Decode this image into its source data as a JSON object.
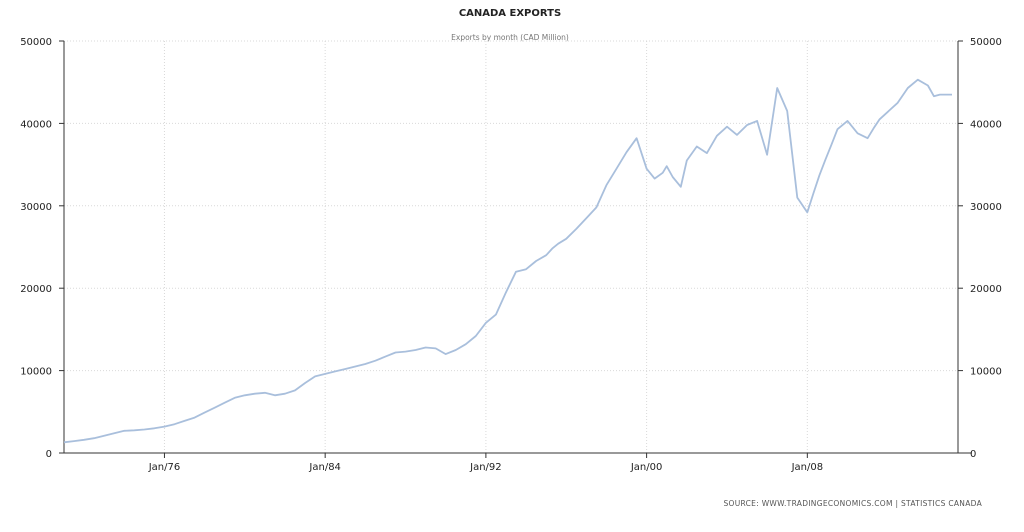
{
  "chart_data": {
    "type": "line",
    "title": "CANADA EXPORTS",
    "subtitle": "Exports by month (CAD Million)",
    "source": "SOURCE:  WWW.TRADINGECONOMICS.COM  |  STATISTICS  CANADA",
    "y_ticks": [
      "0",
      "10000",
      "20000",
      "30000",
      "40000",
      "50000"
    ],
    "x_ticks": [
      {
        "label": "Jan/76",
        "value": 1976
      },
      {
        "label": "Jan/84",
        "value": 1984
      },
      {
        "label": "Jan/92",
        "value": 1992
      },
      {
        "label": "Jan/00",
        "value": 2000
      },
      {
        "label": "Jan/08",
        "value": 2008
      }
    ],
    "xlim": [
      1971,
      2015.5
    ],
    "ylim": [
      0,
      50000
    ],
    "grid": true,
    "colors": {
      "line": "#a9bfdc"
    },
    "series": [
      {
        "x": [
          1971.0,
          1971.5,
          1972.0,
          1972.5,
          1973.0,
          1973.5,
          1974.0,
          1974.5,
          1975.0,
          1975.5,
          1976.0,
          1976.5,
          1977.0,
          1977.5,
          1978.0,
          1978.5,
          1979.0,
          1979.5,
          1980.0,
          1980.5,
          1981.0,
          1981.5,
          1982.0,
          1982.5,
          1983.0,
          1983.5,
          1984.0,
          1984.5,
          1985.0,
          1985.5,
          1986.0,
          1986.5,
          1987.0,
          1987.5,
          1988.0,
          1988.5,
          1989.0,
          1989.5,
          1990.0,
          1990.5,
          1991.0,
          1991.5,
          1992.0,
          1992.5,
          1993.0,
          1993.5,
          1994.0,
          1994.5,
          1995.0,
          1995.3,
          1995.6,
          1996.0,
          1996.5,
          1997.0,
          1997.5,
          1998.0,
          1998.5,
          1999.0,
          1999.5,
          2000.0,
          2000.4,
          2000.8,
          2001.0,
          2001.3,
          2001.7,
          2002.0,
          2002.5,
          2003.0,
          2003.5,
          2004.0,
          2004.5,
          2005.0,
          2005.5,
          2006.0,
          2006.5,
          2007.0,
          2007.5,
          2008.0,
          2008.3,
          2008.6,
          2008.9,
          2009.2,
          2009.5,
          2010.0,
          2010.5,
          2011.0,
          2011.3,
          2011.6,
          2012.0,
          2012.5,
          2013.0,
          2013.5,
          2014.0,
          2014.3,
          2014.6,
          2014.9,
          2015.2
        ],
        "y": [
          1300,
          1450,
          1600,
          1800,
          2100,
          2400,
          2700,
          2750,
          2850,
          3000,
          3200,
          3500,
          3900,
          4300,
          4900,
          5500,
          6100,
          6700,
          7000,
          7200,
          7300,
          7000,
          7200,
          7600,
          8500,
          9300,
          9600,
          9900,
          10200,
          10500,
          10800,
          11200,
          11700,
          12200,
          12300,
          12500,
          12800,
          12700,
          12000,
          12500,
          13200,
          14200,
          15800,
          16800,
          19500,
          22000,
          22300,
          23300,
          24000,
          24800,
          25400,
          26000,
          27200,
          28500,
          29800,
          32500,
          34500,
          36500,
          38200,
          34500,
          33300,
          34000,
          34800,
          33500,
          32300,
          35500,
          37200,
          36400,
          38500,
          39600,
          38600,
          39800,
          40300,
          36200,
          44300,
          41500,
          31000,
          29200,
          31500,
          33700,
          35600,
          37400,
          39300,
          40300,
          38800,
          38200,
          39400,
          40500,
          41400,
          42500,
          44300,
          45300,
          44600,
          43300,
          43500,
          43500,
          43500
        ]
      }
    ]
  }
}
